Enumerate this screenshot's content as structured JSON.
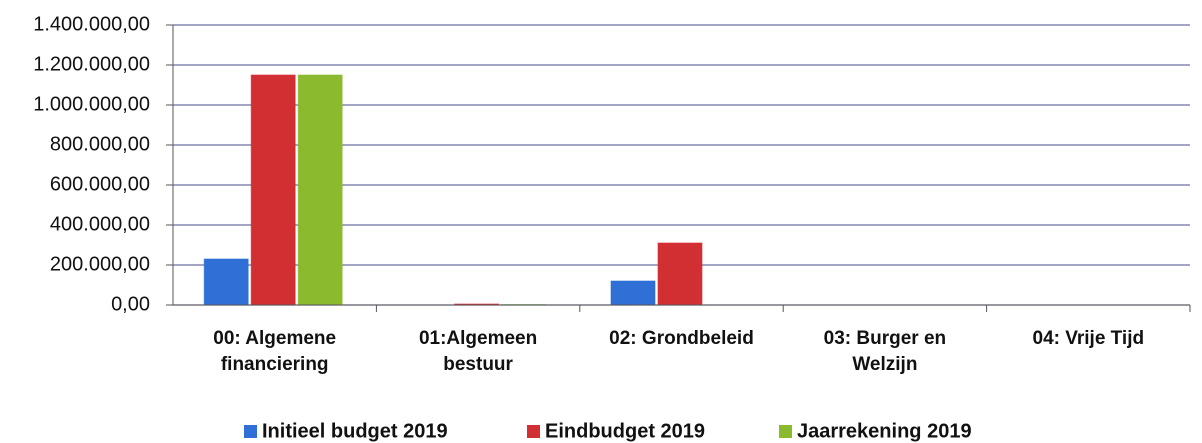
{
  "chart_data": {
    "type": "bar",
    "categories": [
      "00: Algemene financiering",
      "01:Algemeen bestuur",
      "02: Grondbeleid",
      "03: Burger en Welzijn",
      "04: Vrije Tijd"
    ],
    "series": [
      {
        "name": "Initieel budget 2019",
        "color": "#2f6fd6",
        "values": [
          230000,
          0,
          120000,
          0,
          0
        ]
      },
      {
        "name": "Eindbudget 2019",
        "color": "#d22f33",
        "values": [
          1150000,
          5000,
          310000,
          0,
          0
        ]
      },
      {
        "name": "Jaarrekening 2019",
        "color": "#8cba2f",
        "values": [
          1150000,
          2000,
          0,
          0,
          0
        ]
      }
    ],
    "ylim": [
      0,
      1400000
    ],
    "yticks": [
      {
        "value": 0,
        "label": "0,00"
      },
      {
        "value": 200000,
        "label": "200.000,00"
      },
      {
        "value": 400000,
        "label": "400.000,00"
      },
      {
        "value": 600000,
        "label": "600.000,00"
      },
      {
        "value": 800000,
        "label": "800.000,00"
      },
      {
        "value": 1000000,
        "label": "1.000.000,00"
      },
      {
        "value": 1200000,
        "label": "1.200.000,00"
      },
      {
        "value": 1400000,
        "label": "1.400.000,00"
      }
    ],
    "grid": true,
    "legend": "bottom"
  }
}
